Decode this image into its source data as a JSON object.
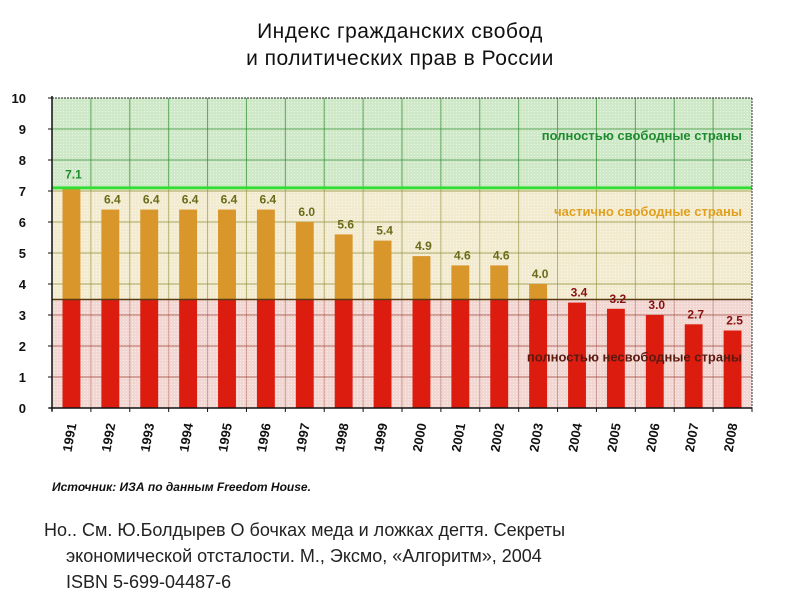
{
  "chart_data": {
    "type": "bar",
    "title": "Индекс гражданских свобод\nи политических прав в России",
    "title_lines": [
      "Индекс гражданских свобод",
      "и политических прав в России"
    ],
    "categories": [
      "1991",
      "1992",
      "1993",
      "1994",
      "1995",
      "1996",
      "1997",
      "1998",
      "1999",
      "2000",
      "2001",
      "2002",
      "2003",
      "2004",
      "2005",
      "2006",
      "2007",
      "2008"
    ],
    "values": [
      7.1,
      6.4,
      6.4,
      6.4,
      6.4,
      6.4,
      6.0,
      5.6,
      5.4,
      4.9,
      4.6,
      4.6,
      4.0,
      3.4,
      3.2,
      3.0,
      2.7,
      2.5
    ],
    "labels": [
      "7.1",
      "6.4",
      "6.4",
      "6.4",
      "6.4",
      "6.4",
      "6.0",
      "5.6",
      "5.4",
      "4.9",
      "4.6",
      "4.6",
      "4.0",
      "3.4",
      "3.2",
      "3.0",
      "2.7",
      "2.5"
    ],
    "xlabel": "",
    "ylabel": "",
    "ylim": [
      0,
      10
    ],
    "yticks": [
      "0",
      "1",
      "2",
      "3",
      "4",
      "5",
      "6",
      "7",
      "8",
      "9",
      "10"
    ],
    "grid": true,
    "zones": [
      {
        "name": "полностью свободные страны",
        "from": 7.1,
        "to": 10,
        "fill": "#cfe8c8",
        "bar_color": "#d9962a",
        "label_color": "#1e8c2e"
      },
      {
        "name": "частично свободные страны",
        "from": 3.5,
        "to": 7.1,
        "fill": "#f3ebcf",
        "bar_color": "#d9962a",
        "label_color": "#e0a020"
      },
      {
        "name": "полностью несвободные страны",
        "from": 0,
        "to": 3.5,
        "fill": "#f1d6d2",
        "bar_color": "#dd1c10",
        "label_color": "#5a1a10"
      }
    ],
    "free_threshold": 7.1,
    "not_free_threshold": 3.5,
    "colors": {
      "free_line": "#33dd33",
      "grid_free": "#2a8a2a",
      "grid_partial": "#8a8a30",
      "grid_notfree": "#9a3a30",
      "bar_partial": "#d9962a",
      "bar_notfree": "#dd1c10",
      "label_partial": "#6b6b1a",
      "label_notfree": "#8a1010"
    }
  },
  "source": "Источник: ИЗА по данным Freedom House.",
  "reference": {
    "line1": "Но.. См. Ю.Болдырев О бочках меда и ложках дегтя. Секреты",
    "line2": "экономической отсталости. М., Эксмо, «Алгоритм», 2004",
    "line3": "ISBN 5-699-04487-6"
  }
}
